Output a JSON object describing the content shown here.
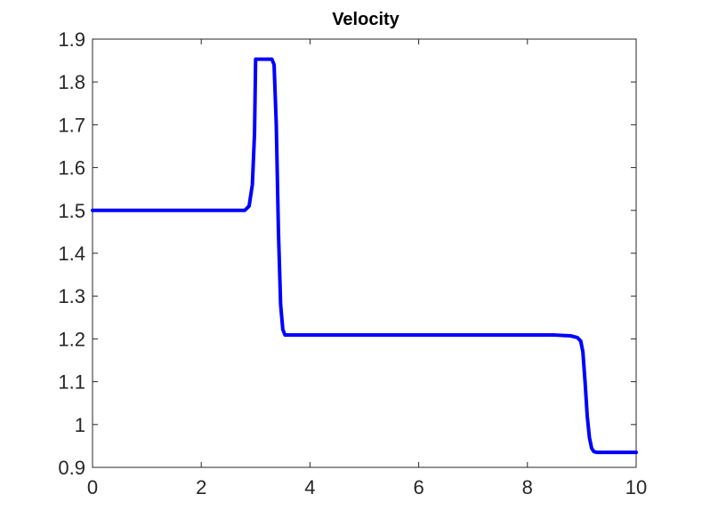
{
  "chart_data": {
    "type": "line",
    "title": "Velocity",
    "xlabel": "",
    "ylabel": "",
    "xlim": [
      0,
      10
    ],
    "ylim": [
      0.9,
      1.9
    ],
    "x_ticks": [
      "0",
      "2",
      "4",
      "6",
      "8",
      "10"
    ],
    "y_ticks": [
      "0.9",
      "1",
      "1.1",
      "1.2",
      "1.3",
      "1.4",
      "1.5",
      "1.6",
      "1.7",
      "1.8",
      "1.9"
    ],
    "grid": false,
    "line_color": "#0000ff",
    "series": [
      {
        "x": [
          0,
          1,
          2,
          2.8,
          2.88,
          2.94,
          2.98,
          3.0,
          3.02,
          3.1,
          3.2,
          3.3,
          3.34,
          3.38,
          3.42,
          3.46,
          3.5,
          3.54,
          3.6,
          4,
          5,
          6,
          7,
          8,
          8.5,
          8.8,
          8.92,
          8.98,
          9.02,
          9.06,
          9.1,
          9.14,
          9.18,
          9.22,
          9.28,
          9.35,
          9.5,
          10
        ],
        "y": [
          1.5,
          1.5,
          1.5,
          1.5,
          1.51,
          1.56,
          1.68,
          1.853,
          1.853,
          1.853,
          1.853,
          1.853,
          1.84,
          1.7,
          1.45,
          1.28,
          1.222,
          1.209,
          1.209,
          1.209,
          1.209,
          1.209,
          1.209,
          1.209,
          1.209,
          1.207,
          1.203,
          1.195,
          1.17,
          1.1,
          1.02,
          0.97,
          0.945,
          0.937,
          0.935,
          0.935,
          0.935,
          0.935
        ]
      }
    ]
  }
}
